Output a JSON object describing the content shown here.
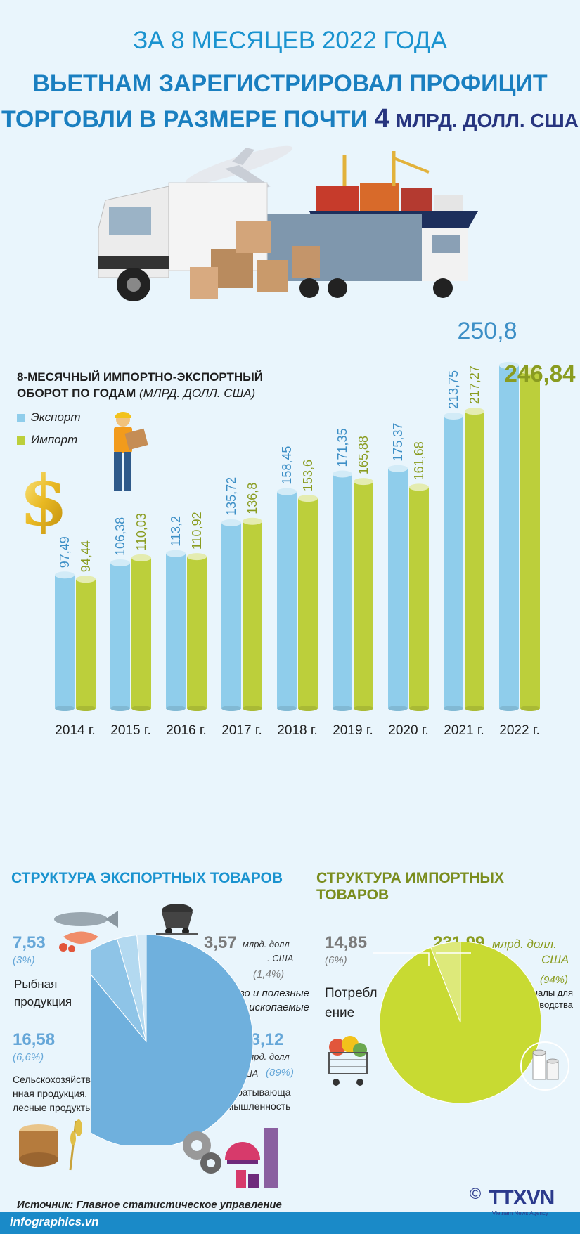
{
  "header": {
    "period": "ЗА 8 МЕСЯЦЕВ 2022 ГОДА",
    "headline_line1": "ВЬЕТНАМ ЗАРЕГИСТРИРОВАЛ ПРОФИЦИТ",
    "headline_line2_text": "ТОРГОВЛИ В РАЗМЕРЕ ПОЧТИ",
    "headline_line2_num": "4",
    "headline_line2_unit": "МЛРД. ДОЛЛ. США"
  },
  "chart_heading": {
    "line1": "8-МЕСЯЧНЫЙ ИМПОРТНО-ЭКСПОРТНЫЙ",
    "line2": "ОБОРОТ ПО ГОДАМ",
    "unit": "(МЛРД. ДОЛЛ. США)"
  },
  "chart_data": {
    "type": "bar",
    "categories": [
      "2014  г.",
      "2015 г.",
      "2016 г.",
      "2017 г.",
      "2018 г.",
      "2019 г.",
      "2020 г.",
      "2021 г.",
      "2022 г."
    ],
    "series": [
      {
        "name": "Экспорт",
        "color": "#8fcdeb",
        "labels": [
          "97,49",
          "106,38",
          "113,2",
          "135,72",
          "158,45",
          "171,35",
          "175,37",
          "213,75",
          "250,8"
        ],
        "values": [
          97.49,
          106.38,
          113.2,
          135.72,
          158.45,
          171.35,
          175.37,
          213.75,
          250.8
        ]
      },
      {
        "name": "Импорт",
        "color": "#bccf3b",
        "labels": [
          "94,44",
          "110,03",
          "110,92",
          "136,8",
          "153,6",
          "165,88",
          "161,68",
          "217,27",
          "246,84"
        ],
        "values": [
          94.44,
          110.03,
          110.92,
          136.8,
          153.6,
          165.88,
          161.68,
          217.27,
          246.84
        ]
      }
    ],
    "ylim": [
      0,
      260
    ]
  },
  "export_structure": {
    "title": "СТРУКТУРА ЭКСПОРТНЫХ ТОВАРОВ",
    "fish": {
      "value": "7,53",
      "pct": "(3%)",
      "label_l1": "Рыбная",
      "label_l2": "продукция"
    },
    "fuel": {
      "value": "3,57",
      "unit_l1": "млрд. долл",
      "unit_l2": ". США",
      "pct": "(1,4%)",
      "label_l1": "Топливо и полезные",
      "label_l2": "ископаемые"
    },
    "agri": {
      "value": "16,58",
      "pct": "(6,6%)",
      "label_l1": "Сельскохозяйстве",
      "label_l2": "нная продукция,",
      "label_l3": "лесные продукты"
    },
    "manuf": {
      "value": "223,12",
      "unit_l1": "млрд. долл",
      "unit_l2": ". США",
      "pct": "(89%)",
      "label_l1": "Перерабатывающа",
      "label_l2": "я промышленность"
    },
    "pie_colors": [
      "#6fb0dd",
      "#8ec4e7",
      "#b3d9f0",
      "#d5eaf7"
    ]
  },
  "import_structure": {
    "title": "СТРУКТУРА ИМПОРТНЫХ ТОВАРОВ",
    "consumer": {
      "value": "14,85",
      "pct": "(6%)",
      "label_l1": "Потребл",
      "label_l2": "ение"
    },
    "materials": {
      "value": "231,99",
      "unit_l1": "млрд. долл.",
      "unit_l2": "США",
      "pct": "(94%)",
      "label_l1": "Материалы для",
      "label_l2": "производства"
    },
    "pie_colors": [
      "#c8da32",
      "#dde97a"
    ]
  },
  "footer": {
    "source": "Источник: Главное статистическое управление",
    "site": "infographics.vn",
    "logo": "TTXVN",
    "logo_sub": "Vietnam News Agency",
    "copyright": "©"
  }
}
